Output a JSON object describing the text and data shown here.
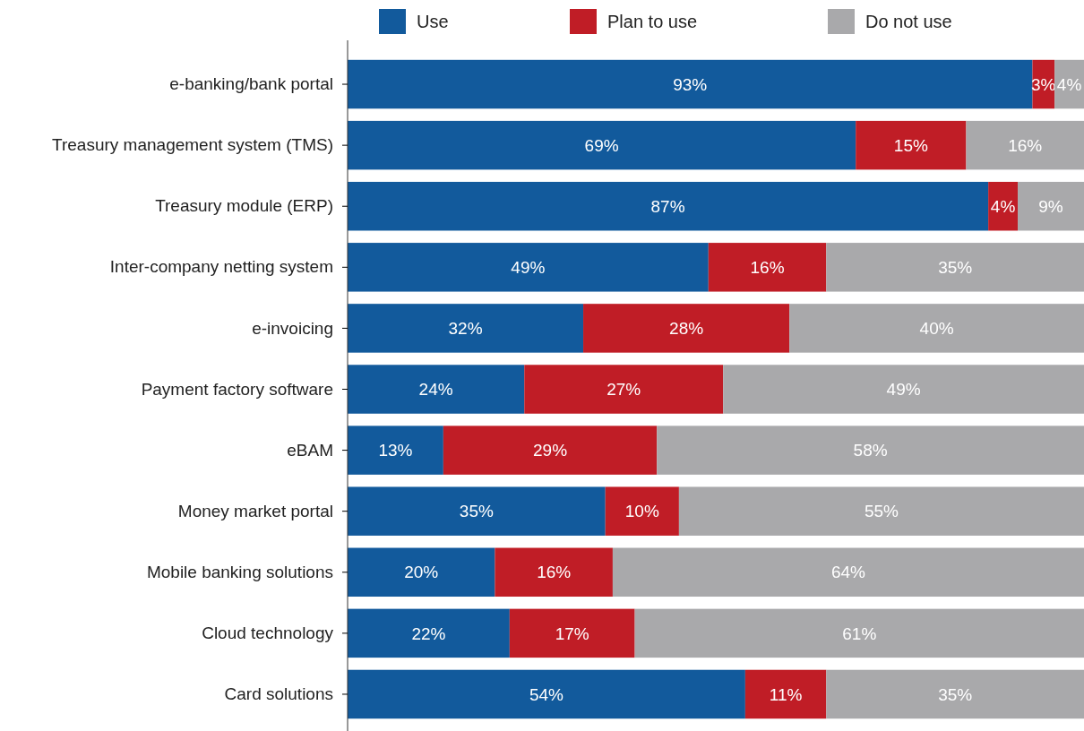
{
  "chart_data": {
    "type": "bar",
    "orientation": "horizontal",
    "stacked": true,
    "legend": "top",
    "tick_labels": "y",
    "xlim": [
      0,
      100
    ],
    "categories": [
      "e-banking/bank portal",
      "Treasury management system (TMS)",
      "Treasury module (ERP)",
      "Inter-company netting system",
      "e-invoicing",
      "Payment factory software",
      "eBAM",
      "Money market portal",
      "Mobile banking solutions",
      "Cloud technology",
      "Card solutions"
    ],
    "series": [
      {
        "name": "Use",
        "color": "#125a9c",
        "values": [
          93,
          69,
          87,
          49,
          32,
          24,
          13,
          35,
          20,
          22,
          54
        ],
        "value_labels": [
          "93%",
          "69%",
          "87%",
          "49%",
          "32%",
          "24%",
          "13%",
          "35%",
          "20%",
          "22%",
          "54%"
        ]
      },
      {
        "name": "Plan to use",
        "color": "#c01d26",
        "values": [
          3,
          15,
          4,
          16,
          28,
          27,
          29,
          10,
          16,
          17,
          11
        ],
        "value_labels": [
          "3%",
          "15%",
          "4%",
          "16%",
          "28%",
          "27%",
          "29%",
          "10%",
          "16%",
          "17%",
          "11%"
        ]
      },
      {
        "name": "Do not use",
        "color": "#a9a9ab",
        "values": [
          4,
          16,
          9,
          35,
          40,
          49,
          58,
          55,
          64,
          61,
          35
        ],
        "value_labels": [
          "4%",
          "16%",
          "9%",
          "35%",
          "40%",
          "49%",
          "58%",
          "55%",
          "64%",
          "61%",
          "35%"
        ]
      }
    ]
  }
}
